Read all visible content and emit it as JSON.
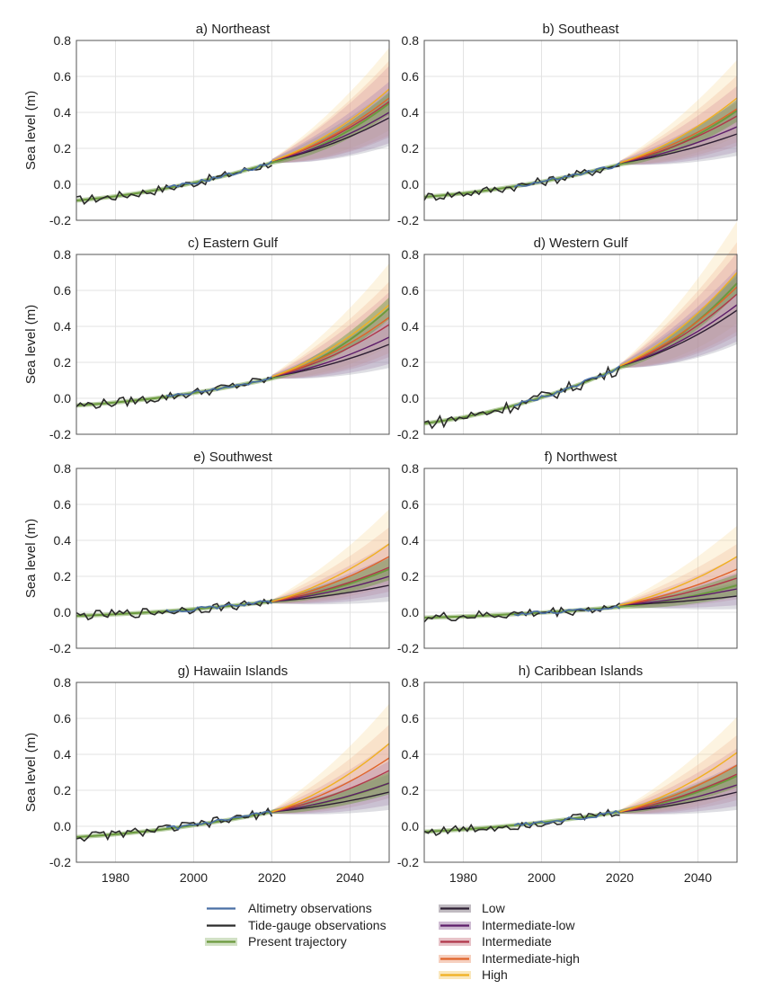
{
  "colors": {
    "altimetry": "#4a6fa5",
    "tide_gauge": "#2b2b2b",
    "trajectory": "#6b9a3e",
    "low": "#2d1f33",
    "intermediate_low": "#5d1d6a",
    "intermediate": "#b0364a",
    "intermediate_high": "#e0642a",
    "high": "#f0b020"
  },
  "legend": {
    "left": [
      {
        "key": "altimetry",
        "label": "Altimetry observations"
      },
      {
        "key": "tide_gauge",
        "label": "Tide-gauge observations"
      },
      {
        "key": "trajectory",
        "label": "Present trajectory"
      }
    ],
    "right": [
      {
        "key": "low",
        "label": "Low"
      },
      {
        "key": "intermediate_low",
        "label": "Intermediate-low"
      },
      {
        "key": "intermediate",
        "label": "Intermediate"
      },
      {
        "key": "intermediate_high",
        "label": "Intermediate-high"
      },
      {
        "key": "high",
        "label": "High"
      }
    ]
  },
  "chart_data": [
    {
      "type": "line",
      "title": "a) Northeast",
      "ylabel": "Sea level (m)",
      "xlim": [
        1970,
        2050
      ],
      "ylim": [
        -0.2,
        0.8
      ],
      "xticks": [
        1980,
        2000,
        2020,
        2040
      ],
      "yticks": [
        -0.2,
        0.0,
        0.2,
        0.4,
        0.6,
        0.8
      ],
      "trajectory": {
        "start": -0.09,
        "mid": 0.0,
        "end2020": 0.12
      },
      "obs_2020": 0.13,
      "scenarios_2050": {
        "low": 0.37,
        "intermediate_low": 0.4,
        "intermediate": 0.46,
        "intermediate_high": 0.48,
        "high": 0.53
      },
      "trajectory_2050": 0.45
    },
    {
      "type": "line",
      "title": "b) Southeast",
      "ylabel": "",
      "xlim": [
        1970,
        2050
      ],
      "ylim": [
        -0.2,
        0.8
      ],
      "xticks": [
        1980,
        2000,
        2020,
        2040
      ],
      "yticks": [
        -0.2,
        0.0,
        0.2,
        0.4,
        0.6,
        0.8
      ],
      "trajectory": {
        "start": -0.07,
        "mid": 0.0,
        "end2020": 0.11
      },
      "obs_2020": 0.12,
      "scenarios_2050": {
        "low": 0.28,
        "intermediate_low": 0.32,
        "intermediate": 0.38,
        "intermediate_high": 0.42,
        "high": 0.48
      },
      "trajectory_2050": 0.41
    },
    {
      "type": "line",
      "title": "c) Eastern Gulf",
      "ylabel": "Sea level (m)",
      "xlim": [
        1970,
        2050
      ],
      "ylim": [
        -0.2,
        0.8
      ],
      "xticks": [
        1980,
        2000,
        2020,
        2040
      ],
      "yticks": [
        -0.2,
        0.0,
        0.2,
        0.4,
        0.6,
        0.8
      ],
      "trajectory": {
        "start": -0.04,
        "mid": -0.02,
        "end2020": 0.11
      },
      "obs_2020": 0.12,
      "scenarios_2050": {
        "low": 0.3,
        "intermediate_low": 0.34,
        "intermediate": 0.41,
        "intermediate_high": 0.45,
        "high": 0.52
      },
      "trajectory_2050": 0.5
    },
    {
      "type": "line",
      "title": "d) Western Gulf",
      "ylabel": "",
      "xlim": [
        1970,
        2050
      ],
      "ylim": [
        -0.2,
        0.8
      ],
      "xticks": [
        1980,
        2000,
        2020,
        2040
      ],
      "yticks": [
        -0.2,
        0.0,
        0.2,
        0.4,
        0.6,
        0.8
      ],
      "trajectory": {
        "start": -0.14,
        "mid": 0.0,
        "end2020": 0.17
      },
      "obs_2020": 0.18,
      "scenarios_2050": {
        "low": 0.49,
        "intermediate_low": 0.52,
        "intermediate": 0.58,
        "intermediate_high": 0.62,
        "high": 0.7
      },
      "trajectory_2050": 0.64
    },
    {
      "type": "line",
      "title": "e) Southwest",
      "ylabel": "Sea level (m)",
      "xlim": [
        1970,
        2050
      ],
      "ylim": [
        -0.2,
        0.8
      ],
      "xticks": [
        1980,
        2000,
        2020,
        2040
      ],
      "yticks": [
        -0.2,
        0.0,
        0.2,
        0.4,
        0.6,
        0.8
      ],
      "trajectory": {
        "start": -0.02,
        "mid": 0.0,
        "end2020": 0.06
      },
      "obs_2020": 0.06,
      "scenarios_2050": {
        "low": 0.15,
        "intermediate_low": 0.2,
        "intermediate": 0.25,
        "intermediate_high": 0.31,
        "high": 0.38
      },
      "trajectory_2050": 0.24
    },
    {
      "type": "line",
      "title": "f) Northwest",
      "ylabel": "",
      "xlim": [
        1970,
        2050
      ],
      "ylim": [
        -0.2,
        0.8
      ],
      "xticks": [
        1980,
        2000,
        2020,
        2040
      ],
      "yticks": [
        -0.2,
        0.0,
        0.2,
        0.4,
        0.6,
        0.8
      ],
      "trajectory": {
        "start": -0.03,
        "mid": 0.0,
        "end2020": 0.03
      },
      "obs_2020": 0.04,
      "scenarios_2050": {
        "low": 0.09,
        "intermediate_low": 0.13,
        "intermediate": 0.19,
        "intermediate_high": 0.24,
        "high": 0.31
      },
      "trajectory_2050": 0.15
    },
    {
      "type": "line",
      "title": "g) Hawaiin Islands",
      "ylabel": "Sea level (m)",
      "xlim": [
        1970,
        2050
      ],
      "ylim": [
        -0.2,
        0.8
      ],
      "xticks": [
        1980,
        2000,
        2020,
        2040
      ],
      "yticks": [
        -0.2,
        0.0,
        0.2,
        0.4,
        0.6,
        0.8
      ],
      "trajectory": {
        "start": -0.06,
        "mid": 0.0,
        "end2020": 0.08
      },
      "obs_2020": 0.08,
      "scenarios_2050": {
        "low": 0.19,
        "intermediate_low": 0.24,
        "intermediate": 0.31,
        "intermediate_high": 0.38,
        "high": 0.46
      },
      "trajectory_2050": 0.24
    },
    {
      "type": "line",
      "title": "h) Caribbean Islands",
      "ylabel": "",
      "xlim": [
        1970,
        2050
      ],
      "ylim": [
        -0.2,
        0.8
      ],
      "xticks": [
        1980,
        2000,
        2020,
        2040
      ],
      "yticks": [
        -0.2,
        0.0,
        0.2,
        0.4,
        0.6,
        0.8
      ],
      "trajectory": {
        "start": -0.03,
        "mid": 0.0,
        "end2020": 0.08
      },
      "obs_2020": 0.08,
      "scenarios_2050": {
        "low": 0.19,
        "intermediate_low": 0.23,
        "intermediate": 0.29,
        "intermediate_high": 0.34,
        "high": 0.41
      },
      "trajectory_2050": 0.28
    }
  ]
}
